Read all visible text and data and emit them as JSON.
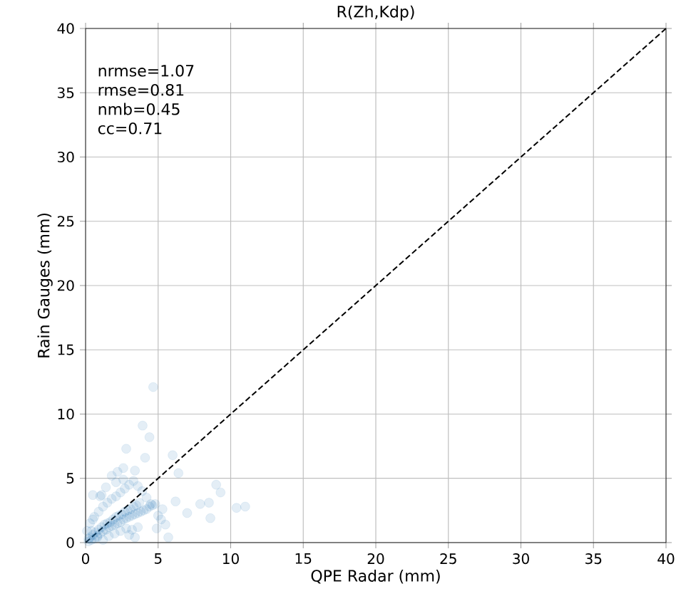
{
  "chart_data": {
    "type": "scatter",
    "title": "R(Zh,Kdp)",
    "xlabel": "QPE Radar (mm)",
    "ylabel": "Rain Gauges (mm)",
    "xlim": [
      0,
      40
    ],
    "ylim": [
      0,
      40
    ],
    "xticks": [
      0,
      5,
      10,
      15,
      20,
      25,
      30,
      35,
      40
    ],
    "yticks": [
      0,
      5,
      10,
      15,
      20,
      25,
      30,
      35,
      40
    ],
    "grid": true,
    "annotations": [
      "nrmse=1.07",
      "rmse=0.81",
      "nmb=0.45",
      "cc=0.71"
    ],
    "series": [
      {
        "marker": "circle",
        "color": "#1f77b4",
        "x": [
          4.66,
          3.93,
          4.4,
          2.8,
          4.1,
          6.0,
          6.4,
          9.0,
          9.3,
          11.0,
          10.4,
          8.5,
          7.9,
          8.6,
          7.0,
          5.7,
          6.2,
          0.5,
          1.1,
          2.1,
          3.4,
          2.6,
          0.2,
          0.3,
          0.4,
          0.5,
          0.6,
          0.7,
          0.8,
          0.9,
          1.0,
          1.1,
          1.2,
          1.3,
          1.4,
          1.5,
          1.6,
          1.7,
          1.8,
          1.9,
          2.0,
          2.1,
          2.2,
          2.3,
          2.4,
          2.5,
          2.6,
          2.7,
          2.8,
          2.9,
          3.0,
          3.1,
          3.2,
          3.3,
          3.4,
          3.5,
          3.6,
          3.7,
          3.8,
          4.0,
          4.2,
          4.4,
          4.6,
          4.8,
          5.0,
          5.2,
          0.3,
          0.6,
          0.9,
          1.2,
          1.5,
          1.8,
          2.1,
          2.4,
          2.7,
          3.0,
          3.3,
          3.6,
          3.9,
          4.2,
          4.5,
          0.4,
          0.8,
          1.2,
          1.6,
          2.0,
          2.4,
          2.8,
          3.2,
          3.6,
          1.0,
          1.4,
          1.8,
          2.2,
          2.6,
          3.0,
          3.4,
          0.1,
          0.2,
          0.5,
          5.5,
          4.9,
          5.3
        ],
        "values": [
          12.1,
          9.1,
          8.2,
          7.3,
          6.6,
          6.8,
          5.4,
          4.5,
          3.9,
          2.8,
          2.7,
          3.1,
          3.0,
          1.9,
          2.3,
          0.4,
          3.2,
          3.7,
          3.7,
          4.7,
          5.6,
          5.8,
          0.1,
          0.4,
          0.2,
          0.6,
          0.3,
          0.8,
          0.5,
          1.0,
          0.7,
          1.2,
          0.9,
          1.4,
          1.0,
          1.5,
          1.2,
          1.6,
          1.3,
          1.8,
          1.4,
          2.0,
          1.5,
          2.1,
          1.6,
          2.2,
          1.8,
          2.4,
          1.9,
          2.5,
          2.0,
          2.6,
          2.1,
          2.8,
          2.2,
          2.9,
          2.3,
          3.1,
          2.4,
          2.5,
          2.6,
          2.8,
          2.9,
          3.0,
          2.1,
          1.8,
          1.5,
          2.0,
          2.4,
          2.8,
          3.1,
          3.4,
          3.6,
          3.9,
          4.2,
          4.5,
          4.8,
          4.4,
          4.0,
          3.5,
          3.0,
          0.9,
          0.4,
          0.2,
          0.5,
          0.7,
          0.9,
          1.1,
          1.0,
          1.2,
          3.6,
          4.3,
          5.2,
          5.5,
          4.9,
          0.6,
          0.4,
          0.9,
          0.3,
          1.8,
          1.4,
          1.1,
          2.6
        ]
      },
      {
        "type": "line",
        "marker": "none",
        "color": "#000000",
        "line_style": "dashed",
        "x": [
          0,
          40
        ],
        "values": [
          0,
          40
        ]
      }
    ]
  }
}
